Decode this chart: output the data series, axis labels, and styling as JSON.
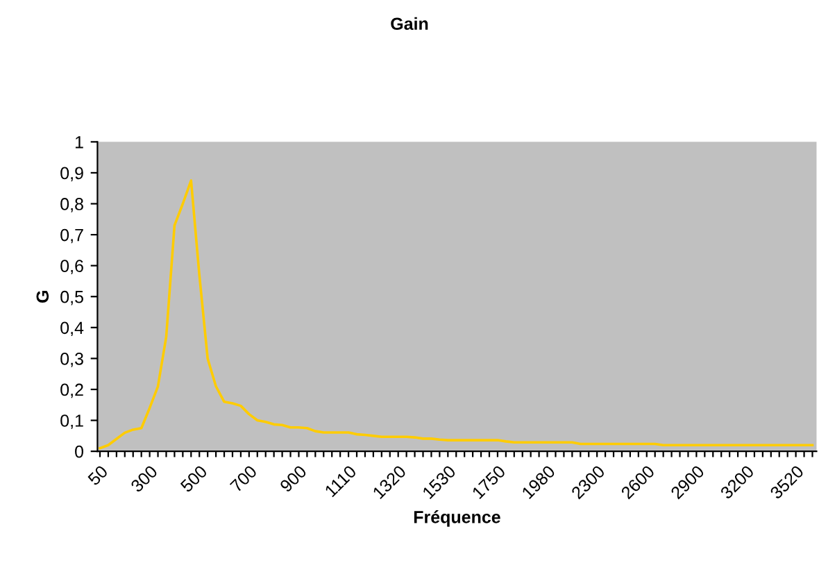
{
  "chart_data": {
    "type": "line",
    "title": "Gain",
    "xlabel": "Fréquence",
    "ylabel": "G",
    "categories": [
      "50",
      null,
      null,
      null,
      null,
      null,
      "300",
      null,
      null,
      null,
      null,
      null,
      "500",
      null,
      null,
      null,
      null,
      null,
      "700",
      null,
      null,
      null,
      null,
      null,
      "900",
      null,
      null,
      null,
      null,
      null,
      "1110",
      null,
      null,
      null,
      null,
      null,
      "1320",
      null,
      null,
      null,
      null,
      null,
      "1530",
      null,
      null,
      null,
      null,
      null,
      "1750",
      null,
      null,
      null,
      null,
      null,
      "1980",
      null,
      null,
      null,
      null,
      null,
      "2300",
      null,
      null,
      null,
      null,
      null,
      "2600",
      null,
      null,
      null,
      null,
      null,
      "2900",
      null,
      null,
      null,
      null,
      null,
      "3200",
      null,
      null,
      null,
      null,
      null,
      "3520",
      null,
      null
    ],
    "series": [
      {
        "color": "#ffcc00",
        "values": [
          0.01,
          0.02,
          0.04,
          0.06,
          0.07,
          0.075,
          0.14,
          0.21,
          0.37,
          0.73,
          0.8,
          0.875,
          0.57,
          0.3,
          0.21,
          0.16,
          0.155,
          0.147,
          0.12,
          0.1,
          0.095,
          0.087,
          0.085,
          0.077,
          0.077,
          0.075,
          0.065,
          0.061,
          0.061,
          0.061,
          0.061,
          0.055,
          0.053,
          0.05,
          0.047,
          0.047,
          0.047,
          0.047,
          0.045,
          0.041,
          0.041,
          0.038,
          0.036,
          0.036,
          0.036,
          0.036,
          0.036,
          0.036,
          0.036,
          0.032,
          0.029,
          0.029,
          0.029,
          0.029,
          0.029,
          0.029,
          0.029,
          0.029,
          0.024,
          0.024,
          0.024,
          0.024,
          0.024,
          0.024,
          0.024,
          0.024,
          0.024,
          0.024,
          0.02,
          0.02,
          0.02,
          0.02,
          0.02,
          0.02,
          0.02,
          0.02,
          0.02,
          0.02,
          0.02,
          0.02,
          0.02,
          0.02,
          0.02,
          0.02,
          0.02,
          0.02,
          0.02
        ]
      }
    ],
    "ylim": [
      0,
      1
    ],
    "yticks": [
      0,
      {
        "value": 0.1,
        "label": "0,1"
      },
      {
        "value": 0.2,
        "label": "0,2"
      },
      {
        "value": 0.3,
        "label": "0,3"
      },
      {
        "value": 0.4,
        "label": "0,4"
      },
      {
        "value": 0.5,
        "label": "0,5"
      },
      {
        "value": 0.6,
        "label": "0,6"
      },
      {
        "value": 0.7,
        "label": "0,7"
      },
      {
        "value": 0.8,
        "label": "0,8"
      },
      {
        "value": 0.9,
        "label": "0,9"
      },
      1
    ],
    "grid": false,
    "legend": false,
    "marker": "none",
    "line_style": "solid"
  }
}
